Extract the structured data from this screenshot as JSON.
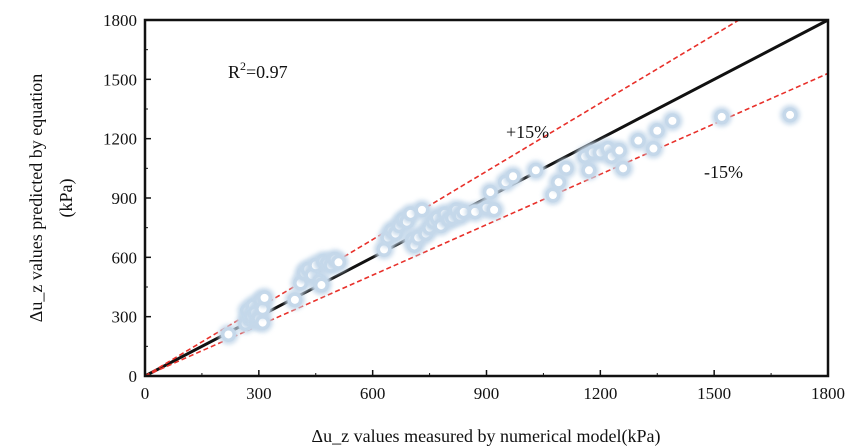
{
  "chart_data": {
    "type": "scatter",
    "title": "",
    "xlabel": "Δu_z values measured by numerical model(kPa)",
    "ylabel_line1": "Δu_z values predicted by equation",
    "ylabel_line2": "(kPa)",
    "xlim": [
      0,
      1800
    ],
    "ylim": [
      0,
      1800
    ],
    "xticks": [
      "0",
      "300",
      "600",
      "900",
      "1200",
      "1500",
      "1800"
    ],
    "yticks": [
      "0",
      "300",
      "600",
      "900",
      "1200",
      "1500",
      "1800"
    ],
    "xtick_values": [
      0,
      300,
      600,
      900,
      1200,
      1500,
      1800
    ],
    "ytick_values": [
      0,
      300,
      600,
      900,
      1200,
      1500,
      1800
    ],
    "grid": false,
    "r2_base": "R",
    "r2_sup": "2",
    "r2_value": "=0.97",
    "plus_label": "+15%",
    "minus_label": "-15%",
    "reference_lines": [
      {
        "kind": "equality",
        "slope": 1.0,
        "style": "solid",
        "color": "#111111"
      },
      {
        "kind": "upper",
        "slope": 1.15,
        "style": "dashed",
        "color": "#e8302a"
      },
      {
        "kind": "lower",
        "slope": 0.85,
        "style": "dashed",
        "color": "#e8302a"
      }
    ],
    "marker_color": "#c5d8ea",
    "points": [
      [
        220,
        210
      ],
      [
        265,
        265
      ],
      [
        270,
        330
      ],
      [
        275,
        290
      ],
      [
        280,
        300
      ],
      [
        285,
        355
      ],
      [
        290,
        320
      ],
      [
        295,
        280
      ],
      [
        300,
        290
      ],
      [
        305,
        380
      ],
      [
        310,
        270
      ],
      [
        310,
        340
      ],
      [
        315,
        395
      ],
      [
        395,
        385
      ],
      [
        410,
        470
      ],
      [
        420,
        520
      ],
      [
        430,
        540
      ],
      [
        440,
        510
      ],
      [
        450,
        560
      ],
      [
        460,
        480
      ],
      [
        465,
        460
      ],
      [
        470,
        580
      ],
      [
        480,
        570
      ],
      [
        490,
        560
      ],
      [
        500,
        590
      ],
      [
        510,
        575
      ],
      [
        630,
        640
      ],
      [
        640,
        700
      ],
      [
        650,
        735
      ],
      [
        660,
        720
      ],
      [
        670,
        760
      ],
      [
        680,
        790
      ],
      [
        690,
        780
      ],
      [
        700,
        820
      ],
      [
        705,
        690
      ],
      [
        710,
        660
      ],
      [
        720,
        700
      ],
      [
        730,
        840
      ],
      [
        740,
        720
      ],
      [
        750,
        750
      ],
      [
        760,
        780
      ],
      [
        770,
        800
      ],
      [
        780,
        760
      ],
      [
        790,
        820
      ],
      [
        800,
        790
      ],
      [
        810,
        800
      ],
      [
        820,
        840
      ],
      [
        830,
        810
      ],
      [
        840,
        830
      ],
      [
        870,
        830
      ],
      [
        900,
        850
      ],
      [
        910,
        930
      ],
      [
        920,
        840
      ],
      [
        950,
        980
      ],
      [
        970,
        1010
      ],
      [
        1030,
        1040
      ],
      [
        1075,
        915
      ],
      [
        1090,
        980
      ],
      [
        1110,
        1050
      ],
      [
        1160,
        1110
      ],
      [
        1170,
        1040
      ],
      [
        1180,
        1130
      ],
      [
        1200,
        1130
      ],
      [
        1220,
        1150
      ],
      [
        1230,
        1110
      ],
      [
        1250,
        1140
      ],
      [
        1260,
        1050
      ],
      [
        1300,
        1190
      ],
      [
        1340,
        1150
      ],
      [
        1350,
        1240
      ],
      [
        1390,
        1290
      ],
      [
        1520,
        1310
      ],
      [
        1700,
        1320
      ]
    ]
  }
}
